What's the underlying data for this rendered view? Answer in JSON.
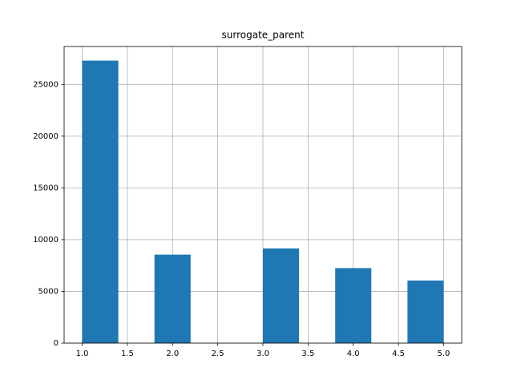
{
  "chart_data": {
    "type": "histogram",
    "title": "surrogate_parent",
    "bins": [
      1.0,
      1.4,
      1.8,
      2.2,
      2.6,
      3.0,
      3.4,
      3.8,
      4.2,
      4.6,
      5.0
    ],
    "values": [
      27300,
      0,
      8550,
      0,
      0,
      9150,
      0,
      7250,
      0,
      6050
    ],
    "color": "#1f77b4",
    "xlim": [
      0.8,
      5.2
    ],
    "ylim": [
      0,
      28665
    ],
    "xticks": [
      {
        "value": 1,
        "label": "1.0"
      },
      1.5,
      {
        "value": 2,
        "label": "2.0"
      },
      2.5,
      {
        "value": 3,
        "label": "3.0"
      },
      3.5,
      {
        "value": 4,
        "label": "4.0"
      },
      4.5,
      {
        "value": 5,
        "label": "5.0"
      }
    ],
    "yticks": [
      0,
      5000,
      10000,
      15000,
      20000,
      25000
    ],
    "grid": true
  }
}
